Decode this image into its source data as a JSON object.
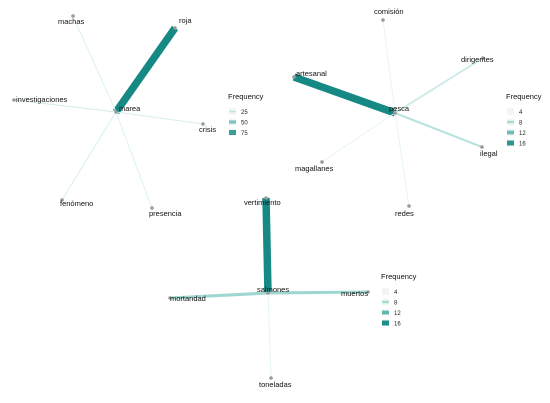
{
  "colors": {
    "node": "#9a9a9a",
    "background": "#ffffff"
  },
  "networks": [
    {
      "id": "marea",
      "center": "marea",
      "legend": {
        "title": "Frequency",
        "entries": [
          {
            "label": "25",
            "value": 25,
            "color": "#c3e6e3"
          },
          {
            "label": "50",
            "value": 50,
            "color": "#7fc4bf"
          },
          {
            "label": "75",
            "value": 75,
            "color": "#3a9f98"
          }
        ]
      },
      "nodes": [
        "marea",
        "machas",
        "roja",
        "investigaciones",
        "crisis",
        "fenómeno",
        "presencia"
      ],
      "edges": [
        {
          "source": "marea",
          "target": "roja",
          "frequency": 90,
          "color": "#168984"
        },
        {
          "source": "marea",
          "target": "machas",
          "frequency": 4,
          "color": "#ddf2f0"
        },
        {
          "source": "marea",
          "target": "investigaciones",
          "frequency": 6,
          "color": "#cfece9"
        },
        {
          "source": "marea",
          "target": "crisis",
          "frequency": 5,
          "color": "#d6efec"
        },
        {
          "source": "marea",
          "target": "fenómeno",
          "frequency": 5,
          "color": "#d6efec"
        },
        {
          "source": "marea",
          "target": "presencia",
          "frequency": 4,
          "color": "#ddf2f0"
        }
      ]
    },
    {
      "id": "pesca",
      "center": "pesca",
      "legend": {
        "title": "Frequency",
        "entries": [
          {
            "label": "4",
            "value": 4,
            "color": "#ecf7f6"
          },
          {
            "label": "8",
            "value": 8,
            "color": "#a9dcd7"
          },
          {
            "label": "12",
            "value": 12,
            "color": "#6bbdb6"
          },
          {
            "label": "16",
            "value": 16,
            "color": "#2a9790"
          }
        ]
      },
      "nodes": [
        "pesca",
        "comisión",
        "artesanal",
        "dirigentes",
        "ilegal",
        "magallanes",
        "redes"
      ],
      "edges": [
        {
          "source": "pesca",
          "target": "artesanal",
          "frequency": 18,
          "color": "#168984"
        },
        {
          "source": "pesca",
          "target": "comisión",
          "frequency": 2,
          "color": "#e6f5f4"
        },
        {
          "source": "pesca",
          "target": "dirigentes",
          "frequency": 4,
          "color": "#c9eae7"
        },
        {
          "source": "pesca",
          "target": "ilegal",
          "frequency": 5,
          "color": "#b8e2de"
        },
        {
          "source": "pesca",
          "target": "magallanes",
          "frequency": 2,
          "color": "#e6f5f4"
        },
        {
          "source": "pesca",
          "target": "redes",
          "frequency": 2,
          "color": "#e6f5f4"
        }
      ]
    },
    {
      "id": "salmones",
      "center": "salmones",
      "legend": {
        "title": "Frequency",
        "entries": [
          {
            "label": "4",
            "value": 4,
            "color": "#ecf7f6"
          },
          {
            "label": "8",
            "value": 8,
            "color": "#a9dcd7"
          },
          {
            "label": "12",
            "value": 12,
            "color": "#5fb6ae"
          },
          {
            "label": "16",
            "value": 16,
            "color": "#1c8f88"
          }
        ]
      },
      "nodes": [
        "salmones",
        "vertimiento",
        "mortandad",
        "muertos",
        "toneladas"
      ],
      "edges": [
        {
          "source": "salmones",
          "target": "vertimiento",
          "frequency": 17,
          "color": "#168984"
        },
        {
          "source": "salmones",
          "target": "mortandad",
          "frequency": 7,
          "color": "#9ed6d0"
        },
        {
          "source": "salmones",
          "target": "muertos",
          "frequency": 7,
          "color": "#9ed6d0"
        },
        {
          "source": "salmones",
          "target": "toneladas",
          "frequency": 2,
          "color": "#e6f5f4"
        }
      ]
    }
  ]
}
